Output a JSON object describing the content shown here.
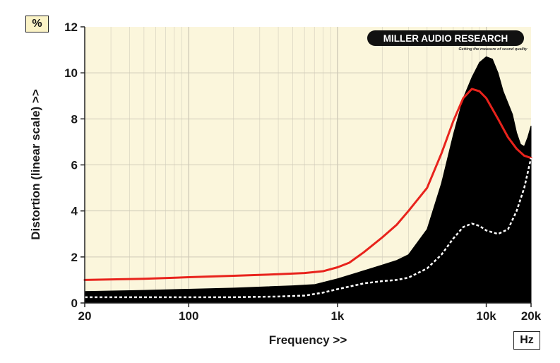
{
  "chart_data": {
    "type": "area",
    "title": "",
    "xlabel": "Frequency >>",
    "ylabel": "Distortion (linear scale) >>",
    "x_unit": "Hz",
    "y_unit": "%",
    "x_scale": "log",
    "xlim": [
      20,
      20000
    ],
    "ylim": [
      0,
      12
    ],
    "x_ticks": [
      20,
      100,
      1000,
      10000,
      20000
    ],
    "x_tick_labels": [
      "20",
      "100",
      "1k",
      "10k",
      "20k"
    ],
    "y_ticks": [
      0,
      2,
      4,
      6,
      8,
      10,
      12
    ],
    "y_tick_labels": [
      "0",
      "2",
      "4",
      "6",
      "8",
      "10",
      "12"
    ],
    "grid": true,
    "series": [
      {
        "style": "filled-area",
        "color": "#000000",
        "points": [
          [
            20,
            0.5
          ],
          [
            50,
            0.55
          ],
          [
            100,
            0.6
          ],
          [
            200,
            0.65
          ],
          [
            500,
            0.75
          ],
          [
            700,
            0.8
          ],
          [
            1000,
            1.05
          ],
          [
            1500,
            1.4
          ],
          [
            2000,
            1.65
          ],
          [
            2500,
            1.85
          ],
          [
            3000,
            2.1
          ],
          [
            4000,
            3.2
          ],
          [
            5000,
            5.2
          ],
          [
            6000,
            7.3
          ],
          [
            7000,
            8.9
          ],
          [
            8000,
            9.8
          ],
          [
            9000,
            10.45
          ],
          [
            10000,
            10.7
          ],
          [
            11000,
            10.6
          ],
          [
            12000,
            10.0
          ],
          [
            13000,
            9.2
          ],
          [
            15000,
            8.2
          ],
          [
            16000,
            7.4
          ],
          [
            17000,
            6.9
          ],
          [
            18000,
            6.8
          ],
          [
            19000,
            7.2
          ],
          [
            20000,
            7.7
          ]
        ]
      },
      {
        "style": "solid-line",
        "color": "#e8231c",
        "points": [
          [
            20,
            1.0
          ],
          [
            50,
            1.05
          ],
          [
            100,
            1.12
          ],
          [
            200,
            1.18
          ],
          [
            400,
            1.25
          ],
          [
            600,
            1.3
          ],
          [
            800,
            1.38
          ],
          [
            1000,
            1.55
          ],
          [
            1200,
            1.75
          ],
          [
            1500,
            2.2
          ],
          [
            2000,
            2.85
          ],
          [
            2500,
            3.4
          ],
          [
            3000,
            4.0
          ],
          [
            4000,
            5.0
          ],
          [
            5000,
            6.5
          ],
          [
            6000,
            7.9
          ],
          [
            7000,
            8.9
          ],
          [
            8000,
            9.3
          ],
          [
            9000,
            9.2
          ],
          [
            10000,
            8.9
          ],
          [
            12000,
            8.0
          ],
          [
            14000,
            7.2
          ],
          [
            16000,
            6.7
          ],
          [
            18000,
            6.4
          ],
          [
            20000,
            6.3
          ]
        ]
      },
      {
        "style": "dotted-line",
        "color": "#ffffff",
        "points": [
          [
            20,
            0.25
          ],
          [
            50,
            0.25
          ],
          [
            100,
            0.25
          ],
          [
            200,
            0.25
          ],
          [
            400,
            0.28
          ],
          [
            600,
            0.32
          ],
          [
            800,
            0.45
          ],
          [
            1000,
            0.6
          ],
          [
            1500,
            0.85
          ],
          [
            2000,
            0.95
          ],
          [
            2500,
            1.0
          ],
          [
            3000,
            1.1
          ],
          [
            4000,
            1.5
          ],
          [
            5000,
            2.1
          ],
          [
            6000,
            2.8
          ],
          [
            7000,
            3.3
          ],
          [
            8000,
            3.45
          ],
          [
            9000,
            3.35
          ],
          [
            10000,
            3.15
          ],
          [
            12000,
            3.0
          ],
          [
            14000,
            3.2
          ],
          [
            16000,
            4.0
          ],
          [
            18000,
            5.0
          ],
          [
            20000,
            6.3
          ]
        ]
      }
    ],
    "background_color": "#fbf6dc",
    "logo": {
      "text": "MILLER AUDIO RESEARCH",
      "tagline": "Getting the measure of sound quality"
    }
  }
}
